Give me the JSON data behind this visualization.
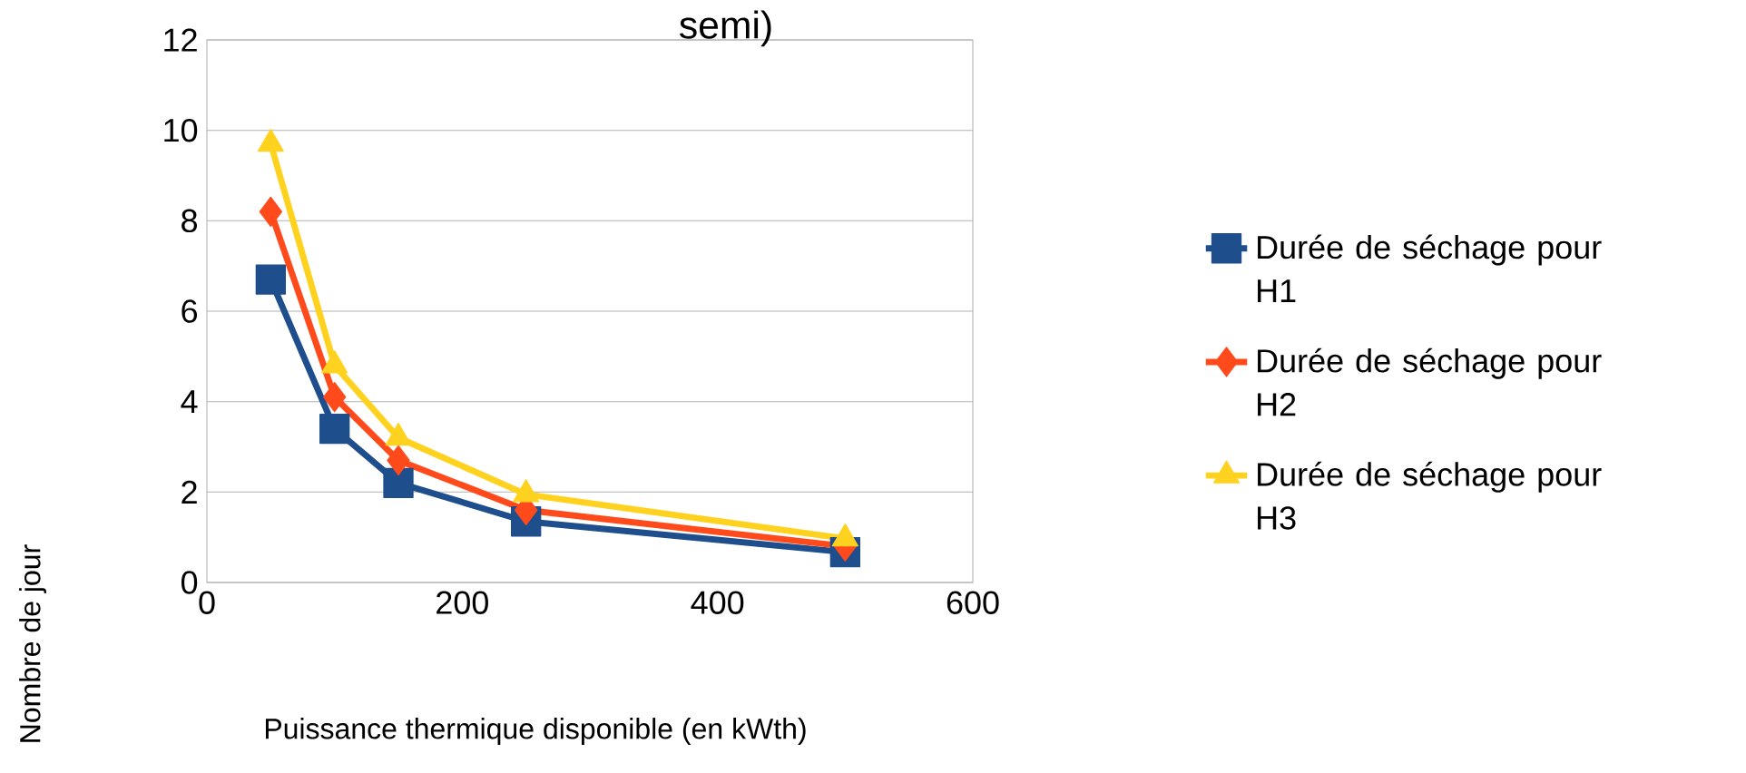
{
  "chart_data": {
    "type": "line",
    "title": "semi)",
    "xlabel": "Puissance thermique disponible (en kWth)",
    "ylabel": "Nombre de jour",
    "x": [
      50,
      100,
      150,
      250,
      500
    ],
    "series": [
      {
        "name": "Durée de séchage pour H1",
        "color": "#1f4e8c",
        "marker": "square",
        "values": [
          6.7,
          3.4,
          2.2,
          1.35,
          0.67
        ]
      },
      {
        "name": "Durée de séchage pour H2",
        "color": "#ff4a1c",
        "marker": "diamond",
        "values": [
          8.2,
          4.1,
          2.7,
          1.6,
          0.8
        ]
      },
      {
        "name": "Durée de séchage pour H3",
        "color": "#ffd21f",
        "marker": "triangle",
        "values": [
          9.7,
          4.8,
          3.2,
          1.95,
          0.97
        ]
      }
    ],
    "xlim": [
      0,
      600
    ],
    "xticks": [
      0,
      200,
      400,
      600
    ],
    "ylim": [
      0,
      12
    ],
    "yticks": [
      0,
      2,
      4,
      6,
      8,
      10,
      12
    ],
    "grid": "y",
    "legend": "right",
    "line_style": "solid"
  }
}
